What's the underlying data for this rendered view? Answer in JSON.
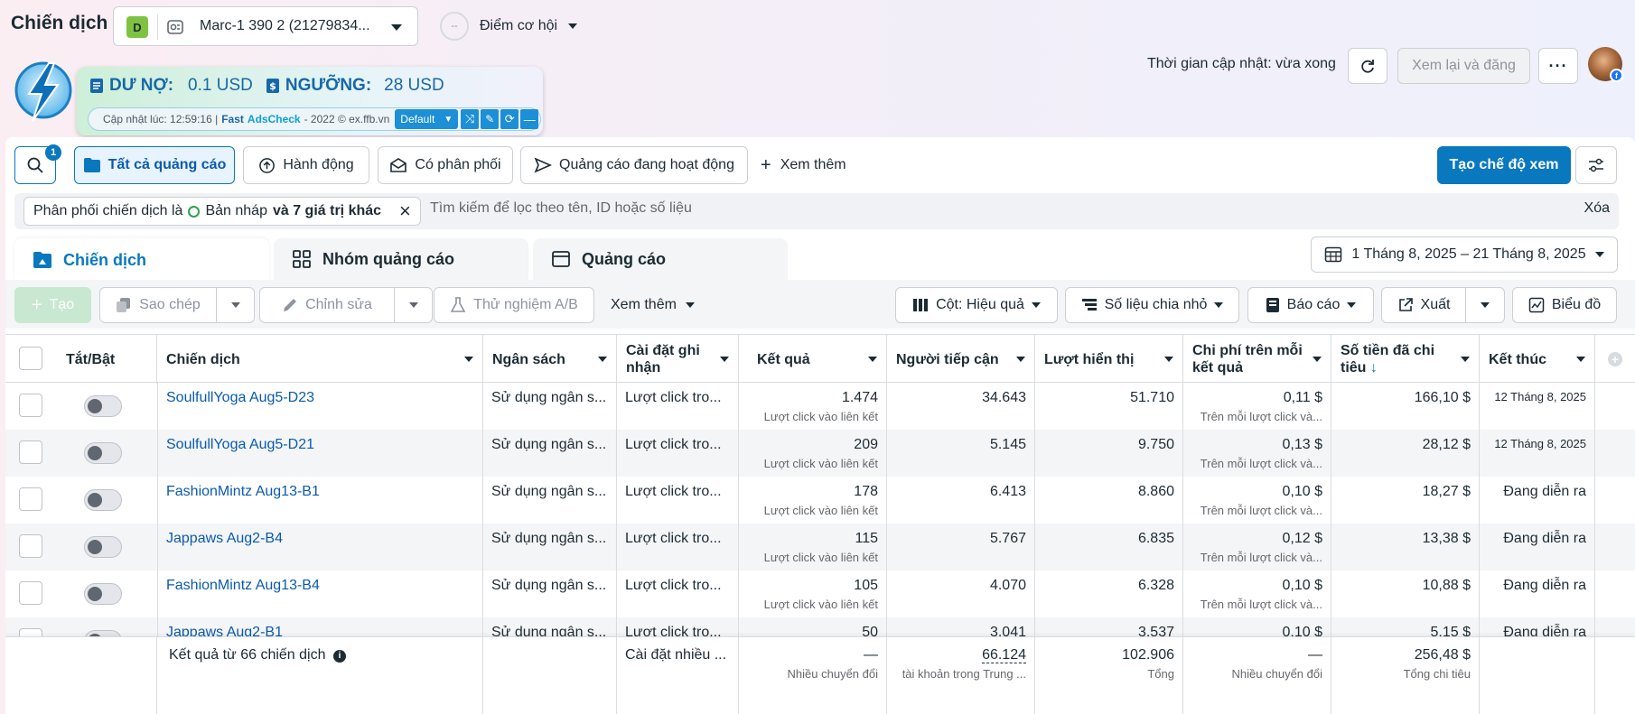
{
  "header": {
    "title": "Chiến dịch",
    "account_initial": "D",
    "account_name": "Marc-1 390 2 (21279834...",
    "opportunity_score": "--",
    "opportunity_label": "Điểm cơ hội",
    "update_time": "Thời gian cập nhật: vừa xong",
    "review_publish": "Xem lại và đăng"
  },
  "extension": {
    "debt_label": "DƯ NỢ:",
    "debt_value": "0.1 USD",
    "threshold_label": "NGƯỠNG:",
    "threshold_value": "28 USD",
    "updated_prefix": "Cập nhật lúc: 12:59:16 |",
    "brand_fast": "Fast",
    "brand_name": "AdsCheck",
    "suffix": "- 2022 © ex.ffb.vn",
    "mode": "Default"
  },
  "toolbar": {
    "search_badge": "1",
    "all_ads": "Tất cả quảng cáo",
    "actions": "Hành động",
    "delivered": "Có phân phối",
    "active_ads": "Quảng cáo đang hoạt động",
    "more": "Xem thêm",
    "create_view": "Tạo chế độ xem"
  },
  "filter": {
    "chip_prefix": "Phân phối chiến dịch là",
    "chip_value": "Bản nháp",
    "chip_suffix": "và 7 giá trị khác",
    "search_placeholder": "Tìm kiếm để lọc theo tên, ID hoặc số liệu",
    "clear": "Xóa"
  },
  "tabs": [
    {
      "label": "Chiến dịch"
    },
    {
      "label": "Nhóm quảng cáo"
    },
    {
      "label": "Quảng cáo"
    }
  ],
  "date_range": "1 Tháng 8, 2025 – 21 Tháng 8, 2025",
  "action_bar": {
    "create": "Tạo",
    "copy": "Sao chép",
    "edit": "Chỉnh sửa",
    "ab_test": "Thử nghiệm A/B",
    "more": "Xem thêm",
    "columns": "Cột: Hiệu quả",
    "breakdown": "Số liệu chia nhỏ",
    "report": "Báo cáo",
    "export": "Xuất",
    "chart": "Biểu đồ"
  },
  "table": {
    "headers": {
      "toggle": "Tắt/Bật",
      "campaign": "Chiến dịch",
      "budget": "Ngân sách",
      "attribution": "Cài đặt ghi nhận",
      "results": "Kết quả",
      "reach": "Người tiếp cận",
      "impressions": "Lượt hiển thị",
      "cost_per_result": "Chi phí trên mỗi kết quả",
      "amount_spent": "Số tiền đã chi tiêu",
      "ends": "Kết thúc"
    },
    "rows": [
      {
        "name": "SoulfullYoga Aug5-D23",
        "budget": "Sử dụng ngân s...",
        "attribution": "Lượt click tro...",
        "results": "1.474",
        "results_sub": "Lượt click vào liên kết",
        "reach": "34.643",
        "impressions": "51.710",
        "cpr": "0,11 $",
        "cpr_sub": "Trên mỗi lượt click và...",
        "spent": "166,10 $",
        "ends": "12 Tháng 8, 2025"
      },
      {
        "name": "SoulfullYoga Aug5-D21",
        "budget": "Sử dụng ngân s...",
        "attribution": "Lượt click tro...",
        "results": "209",
        "results_sub": "Lượt click vào liên kết",
        "reach": "5.145",
        "impressions": "9.750",
        "cpr": "0,13 $",
        "cpr_sub": "Trên mỗi lượt click và...",
        "spent": "28,12 $",
        "ends": "12 Tháng 8, 2025"
      },
      {
        "name": "FashionMintz Aug13-B1",
        "budget": "Sử dụng ngân s...",
        "attribution": "Lượt click tro...",
        "results": "178",
        "results_sub": "Lượt click vào liên kết",
        "reach": "6.413",
        "impressions": "8.860",
        "cpr": "0,10 $",
        "cpr_sub": "Trên mỗi lượt click và...",
        "spent": "18,27 $",
        "ends": "Đang diễn ra"
      },
      {
        "name": "Jappaws Aug2-B4",
        "budget": "Sử dụng ngân s...",
        "attribution": "Lượt click tro...",
        "results": "115",
        "results_sub": "Lượt click vào liên kết",
        "reach": "5.767",
        "impressions": "6.835",
        "cpr": "0,12 $",
        "cpr_sub": "Trên mỗi lượt click và...",
        "spent": "13,38 $",
        "ends": "Đang diễn ra"
      },
      {
        "name": "FashionMintz Aug13-B4",
        "budget": "Sử dụng ngân s...",
        "attribution": "Lượt click tro...",
        "results": "105",
        "results_sub": "Lượt click vào liên kết",
        "reach": "4.070",
        "impressions": "6.328",
        "cpr": "0,10 $",
        "cpr_sub": "Trên mỗi lượt click và...",
        "spent": "10,88 $",
        "ends": "Đang diễn ra"
      },
      {
        "name": "Jappaws Aug2-B1",
        "budget": "Sử dụng ngân s...",
        "attribution": "Lượt click tro...",
        "results": "50",
        "results_sub": "",
        "reach": "3.041",
        "impressions": "3.537",
        "cpr": "0,10 $",
        "cpr_sub": "",
        "spent": "5,15 $",
        "ends": "Đang diễn ra"
      }
    ],
    "totals": {
      "label": "Kết quả từ 66 chiến dịch",
      "attribution": "Cài đặt nhiều ...",
      "results": "—",
      "results_sub": "Nhiều chuyển đổi",
      "reach": "66.124",
      "reach_sub": "tài khoản trong Trung ...",
      "impressions": "102.906",
      "impressions_sub": "Tổng",
      "cpr": "—",
      "cpr_sub": "Nhiều chuyển đổi",
      "spent": "256,48 $",
      "spent_sub": "Tổng chi tiêu"
    }
  },
  "colors": {
    "accent": "#0a78be",
    "link": "#0a5bad",
    "account_badge": "#7fc241"
  }
}
